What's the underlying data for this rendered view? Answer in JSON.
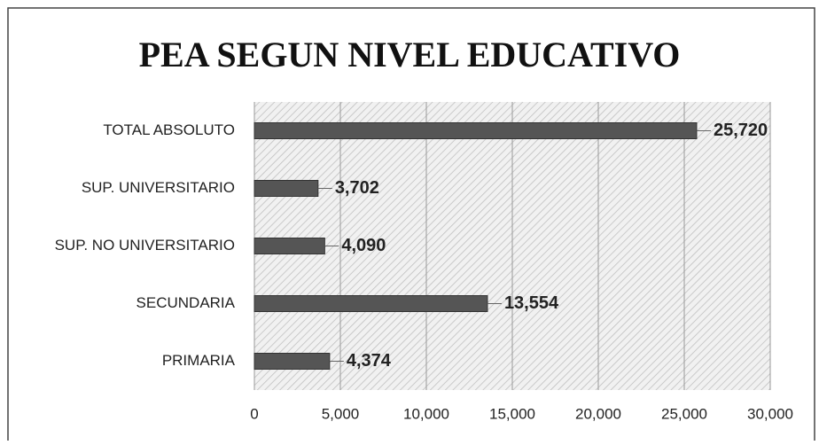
{
  "chart_data": {
    "type": "bar",
    "orientation": "horizontal",
    "title": "PEA SEGUN NIVEL EDUCATIVO",
    "categories": [
      "TOTAL ABSOLUTO",
      "SUP. UNIVERSITARIO",
      "SUP. NO UNIVERSITARIO",
      "SECUNDARIA",
      "PRIMARIA"
    ],
    "values": [
      25720,
      3702,
      4090,
      13554,
      4374
    ],
    "value_labels": [
      "25,720",
      "3,702",
      "4,090",
      "13,554",
      "4,374"
    ],
    "color": "#555555",
    "xlim": [
      0,
      30000
    ],
    "xticks": [
      0,
      {
        "value": 5000,
        "label": "5,000"
      },
      {
        "value": 10000,
        "label": "10,000"
      },
      {
        "value": 15000,
        "label": "15,000"
      },
      {
        "value": 20000,
        "label": "20,000"
      },
      {
        "value": 25000,
        "label": "25,000"
      },
      {
        "value": 30000,
        "label": "30,000"
      }
    ],
    "grid": true
  }
}
